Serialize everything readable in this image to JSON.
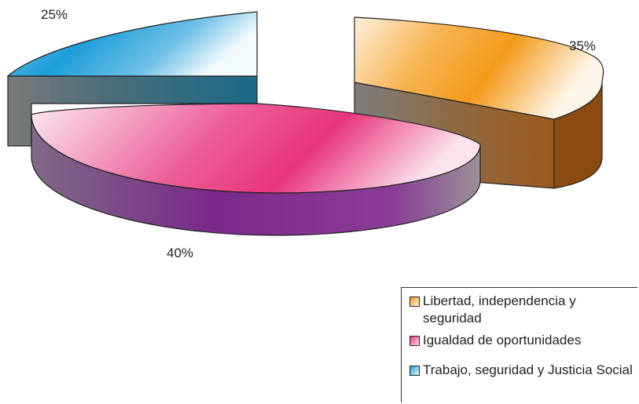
{
  "chart_data": {
    "type": "pie",
    "title": "",
    "slices": [
      {
        "label": "Libertad, independencia y seguridad",
        "value": 35,
        "value_label": "35%",
        "color": "#f39a1a",
        "side_color": "#8a4a10"
      },
      {
        "label": "Igualdad de oportunidades",
        "value": 40,
        "value_label": "40%",
        "color": "#e8357a",
        "side_color": "#7a2a8a"
      },
      {
        "label": "Trabajo, seguridad y Justicia Social",
        "value": 25,
        "value_label": "25%",
        "color": "#1c9ed8",
        "side_color": "#1a5e78"
      }
    ],
    "legend_position": "bottom-right",
    "style": "3d-exploded"
  }
}
